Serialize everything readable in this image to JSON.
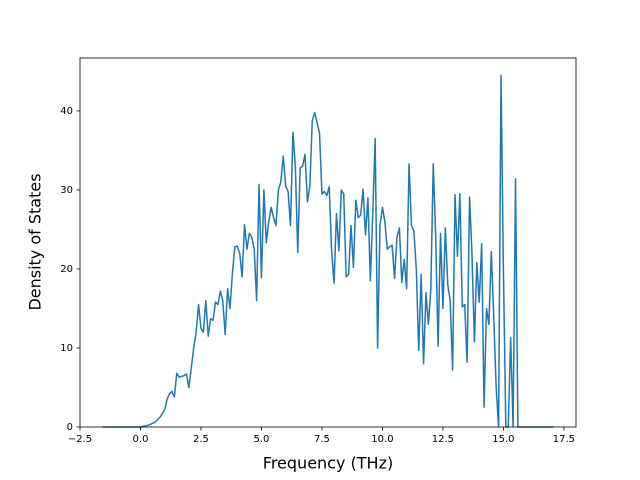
{
  "chart_data": {
    "type": "line",
    "xlabel": "Frequency (THz)",
    "ylabel": "Density of States",
    "color": "#1f77b4",
    "x": [
      -1.57,
      0,
      0.3,
      0.6,
      0.8,
      1.0,
      1.1,
      1.2,
      1.3,
      1.4,
      1.5,
      1.6,
      1.8,
      1.9,
      2.0,
      2.1,
      2.2,
      2.3,
      2.4,
      2.5,
      2.6,
      2.7,
      2.8,
      2.9,
      3.0,
      3.1,
      3.2,
      3.3,
      3.4,
      3.5,
      3.6,
      3.7,
      3.8,
      3.9,
      4.0,
      4.1,
      4.2,
      4.3,
      4.4,
      4.5,
      4.6,
      4.7,
      4.8,
      4.9,
      5.0,
      5.1,
      5.2,
      5.3,
      5.4,
      5.5,
      5.6,
      5.7,
      5.8,
      5.9,
      6.0,
      6.1,
      6.2,
      6.3,
      6.4,
      6.5,
      6.6,
      6.7,
      6.8,
      6.9,
      7.0,
      7.1,
      7.2,
      7.3,
      7.4,
      7.5,
      7.6,
      7.7,
      7.8,
      7.9,
      8.0,
      8.1,
      8.2,
      8.3,
      8.4,
      8.5,
      8.6,
      8.7,
      8.8,
      8.9,
      9.0,
      9.1,
      9.2,
      9.3,
      9.4,
      9.5,
      9.6,
      9.7,
      9.8,
      9.9,
      10.0,
      10.1,
      10.2,
      10.3,
      10.4,
      10.5,
      10.6,
      10.7,
      10.8,
      10.9,
      11.0,
      11.1,
      11.2,
      11.3,
      11.4,
      11.5,
      11.6,
      11.7,
      11.8,
      11.9,
      12.0,
      12.1,
      12.2,
      12.3,
      12.4,
      12.5,
      12.6,
      12.7,
      12.8,
      12.9,
      13.0,
      13.1,
      13.2,
      13.3,
      13.4,
      13.5,
      13.6,
      13.7,
      13.8,
      13.9,
      14.0,
      14.1,
      14.2,
      14.3,
      14.4,
      14.5,
      14.6,
      14.7,
      14.8,
      14.9,
      15.0,
      15.1,
      15.2,
      15.3,
      15.4,
      15.5,
      15.6,
      17.07
    ],
    "values": [
      0,
      0,
      0.2,
      0.6,
      1.2,
      2.2,
      3.5,
      4.2,
      4.5,
      3.8,
      6.8,
      6.3,
      6.5,
      6.7,
      5.0,
      7.5,
      10,
      12,
      15.5,
      12.5,
      12,
      16,
      11.5,
      13.7,
      13.5,
      15.8,
      15.5,
      17.2,
      16,
      11.7,
      17.5,
      15,
      19.5,
      22.8,
      22.9,
      22,
      19,
      25.6,
      22.5,
      24.5,
      24,
      22.5,
      16,
      30.7,
      18.9,
      30,
      23.3,
      26,
      27.8,
      26.5,
      25.5,
      30,
      31,
      34.3,
      30.5,
      29.8,
      25.5,
      37.3,
      33,
      22.1,
      32.8,
      33,
      34.5,
      28.5,
      30.5,
      38.8,
      39.8,
      38.5,
      37.2,
      29.5,
      29.8,
      29.3,
      30.4,
      22.3,
      18.2,
      27,
      22.3,
      30,
      29.5,
      19,
      19.3,
      25.5,
      20.2,
      28.7,
      26.5,
      26.8,
      30.1,
      24.3,
      29,
      18.5,
      27,
      36.5,
      10,
      25.5,
      27.8,
      26,
      22.5,
      22.8,
      23,
      18.8,
      24,
      25.2,
      18.3,
      21.2,
      17.5,
      33.3,
      25.5,
      24.8,
      20,
      9.7,
      19.3,
      8,
      17,
      13,
      17.5,
      33.3,
      24.3,
      10.2,
      24.5,
      15,
      25.2,
      18,
      16,
      7.2,
      29.4,
      21.6,
      29.5,
      15.2,
      15.5,
      8.2,
      29.1,
      22,
      10.8,
      20.8,
      15.8,
      23.2,
      2.5,
      15,
      13,
      22.2,
      14,
      5,
      0,
      44.5,
      20,
      0,
      0,
      11.3,
      0,
      31.4,
      0,
      0
    ],
    "xlim": [
      -2.5,
      18.0
    ],
    "ylim": [
      0,
      46.7
    ],
    "xticks": [
      {
        "value": -2.5,
        "label": "−2.5"
      },
      {
        "value": 0,
        "label": "0.0"
      },
      {
        "value": 2.5,
        "label": "2.5"
      },
      {
        "value": 5,
        "label": "5.0"
      },
      {
        "value": 7.5,
        "label": "7.5"
      },
      {
        "value": 10,
        "label": "10.0"
      },
      {
        "value": 12.5,
        "label": "12.5"
      },
      {
        "value": 15,
        "label": "15.0"
      },
      {
        "value": 17.5,
        "label": "17.5"
      }
    ],
    "yticks": [
      0,
      10,
      20,
      30,
      40
    ]
  }
}
